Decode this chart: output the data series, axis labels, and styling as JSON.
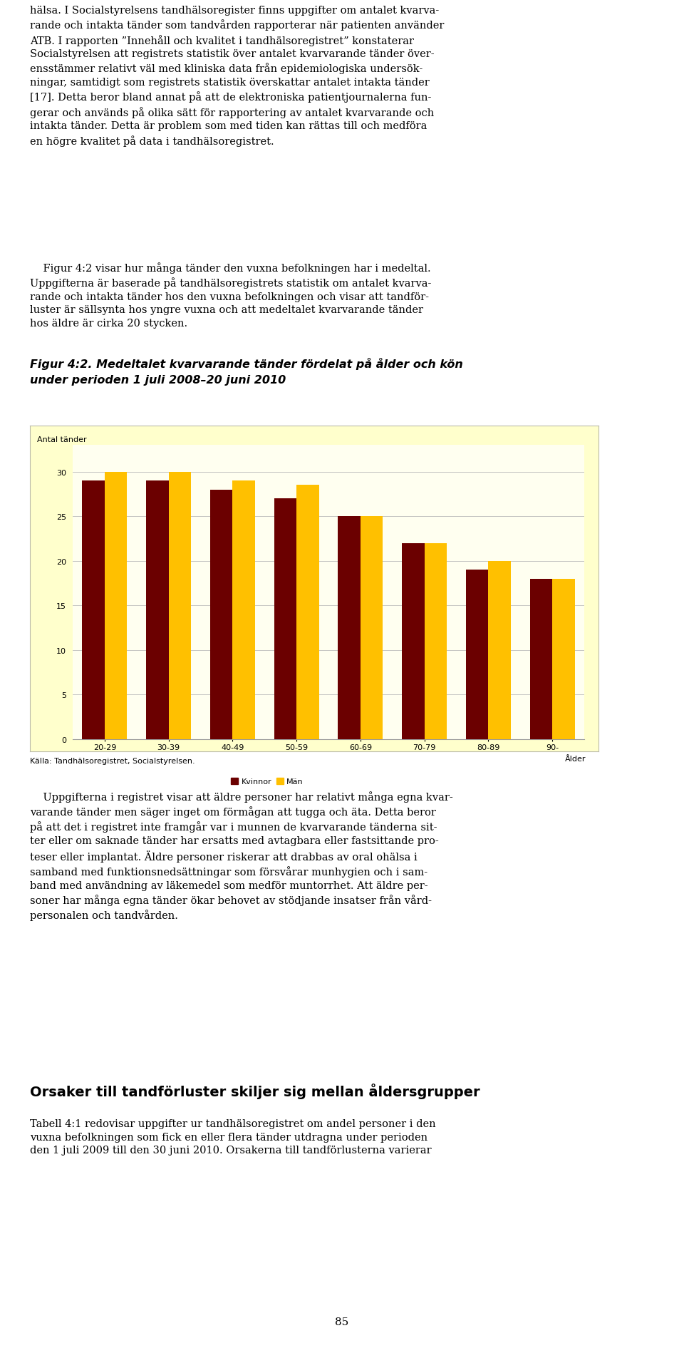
{
  "title_line1": "Figur 4:2. Medeltalet kvarvarande tänder fördelat på ålder och kön",
  "title_line2": "under perioden 1 juli 2008–20 juni 2010",
  "ylabel": "Antal tänder",
  "xlabel_right": "Ålder",
  "source": "Källa: Tandhälsoregistret, Socialstyrelsen.",
  "categories": [
    "20-29",
    "30-39",
    "40-49",
    "50-59",
    "60-69",
    "70-79",
    "80-89",
    "90-"
  ],
  "kvinnor": [
    29.0,
    29.0,
    28.0,
    27.0,
    25.0,
    22.0,
    19.0,
    18.0
  ],
  "man": [
    30.0,
    30.0,
    29.0,
    28.5,
    25.0,
    22.0,
    20.0,
    18.0
  ],
  "bar_color_kvinnor": "#6B0000",
  "bar_color_man": "#FFC000",
  "legend_kvinnor": "Kvinnor",
  "legend_man": "Män",
  "ylim": [
    0,
    33
  ],
  "yticks": [
    0,
    5,
    10,
    15,
    20,
    25,
    30
  ],
  "chart_bg": "#FFFFF0",
  "outer_bg": "#FFFFCC",
  "grid_color": "#BBBBBB",
  "title_fontsize": 11.5,
  "axis_label_fontsize": 8,
  "tick_fontsize": 8,
  "legend_fontsize": 8,
  "source_fontsize": 8,
  "body_fontsize": 10.5,
  "heading_fontsize": 14,
  "page_num_fontsize": 11,
  "text_top": "hälsa. I Socialstyrelsens tandhälsoregister finns uppgifter om antalet kvarva-\nrande och intakta tänder som tandvården rapporterar när patienten använder\nATB. I rapporten ”Innehåll och kvalitet i tandhälsoregistret” konstaterar\nSocialstyrelsen att registrets statistik över antalet kvarvarande tänder över-\nensstämmer relativt väl med kliniska data från epidemiologiska undersök-\nningar, samtidigt som registrets statistik överskattar antalet intakta tänder\n[17]. Detta beror bland annat på att de elektroniska patientjournalerna fun-\ngerar och används på olika sätt för rapportering av antalet kvarvarande och\nintakta tänder. Detta är problem som med tiden kan rättas till och medföra\nen högre kvalitet på data i tandhälsoregistret.",
  "text_para2": "    Figur 4:2 visar hur många tänder den vuxna befolkningen har i medeltal.\nUppgifterna är baserade på tandhälsoregistrets statistik om antalet kvarva-\nrande och intakta tänder hos den vuxna befolkningen och visar att tandför-\nluster är sällsynta hos yngre vuxna och att medeltalet kvarvarande tänder\nhos äldre är cirka 20 stycken.",
  "text_below_chart": "    Uppgifterna i registret visar att äldre personer har relativt många egna kvar-\nvarande tänder men säger inget om förmågan att tugga och äta. Detta beror\npå att det i registret inte framgår var i munnen de kvarvarande tänderna sit-\nter eller om saknade tänder har ersatts med avtagbara eller fastsittande pro-\nteser eller implantat. Äldre personer riskerar att drabbas av oral ohälsa i\nsamband med funktionsnedsättningar som försvårar munhygien och i sam-\nband med användning av läkemedel som medför muntorrhet. Att äldre per-\nsoner har många egna tänder ökar behovet av stödjande insatser från vård-\npersonalen och tandvården.",
  "heading2": "Orsaker till tandförluster skiljer sig mellan åldersgrupper",
  "text_last": "Tabell 4:1 redovisar uppgifter ur tandhälsoregistret om andel personer i den\nvuxna befolkningen som fick en eller flera tänder utdragna under perioden\nden 1 juli 2009 till den 30 juni 2010. Orsakerna till tandförlusterna varierar",
  "page_number": "85"
}
